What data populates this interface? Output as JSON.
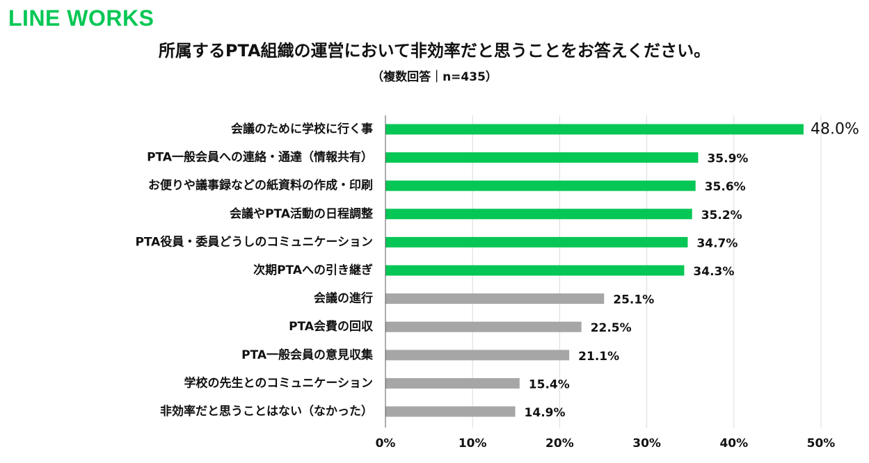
{
  "brand": {
    "logo_text": "LINE WORKS",
    "logo_color": "#06C755"
  },
  "chart_data": {
    "type": "bar",
    "orientation": "horizontal",
    "title": "所属するPTA組織の運営において非効率だと思うことをお答えください。",
    "subtitle": "（複数回答｜n=435）",
    "categories": [
      "会議のために学校に行く事",
      "PTA一般会員への連絡・通達（情報共有）",
      "お便りや議事録などの紙資料の作成・印刷",
      "会議やPTA活動の日程調整",
      "PTA役員・委員どうしのコミュニケーション",
      "次期PTAへの引き継ぎ",
      "会議の進行",
      "PTA会費の回収",
      "PTA一般会員の意見収集",
      "学校の先生とのコミュニケーション",
      "非効率だと思うことはない（なかった）"
    ],
    "values": [
      48.0,
      35.9,
      35.6,
      35.2,
      34.7,
      34.3,
      25.1,
      22.5,
      21.1,
      15.4,
      14.9
    ],
    "value_labels": [
      "48.0%",
      "35.9%",
      "35.6%",
      "35.2%",
      "34.7%",
      "34.3%",
      "25.1%",
      "22.5%",
      "21.1%",
      "15.4%",
      "14.9%"
    ],
    "xlim": [
      0,
      50
    ],
    "x_ticks": [
      0,
      10,
      20,
      30,
      40,
      50
    ],
    "x_tick_labels": [
      "0%",
      "10%",
      "20%",
      "30%",
      "40%",
      "50%"
    ],
    "grid": true,
    "highlight_count": 6,
    "colors": {
      "highlight": "#06C755",
      "other": "#A6A6A6",
      "grid": "#D9D9D9",
      "axis": "#595959"
    }
  }
}
